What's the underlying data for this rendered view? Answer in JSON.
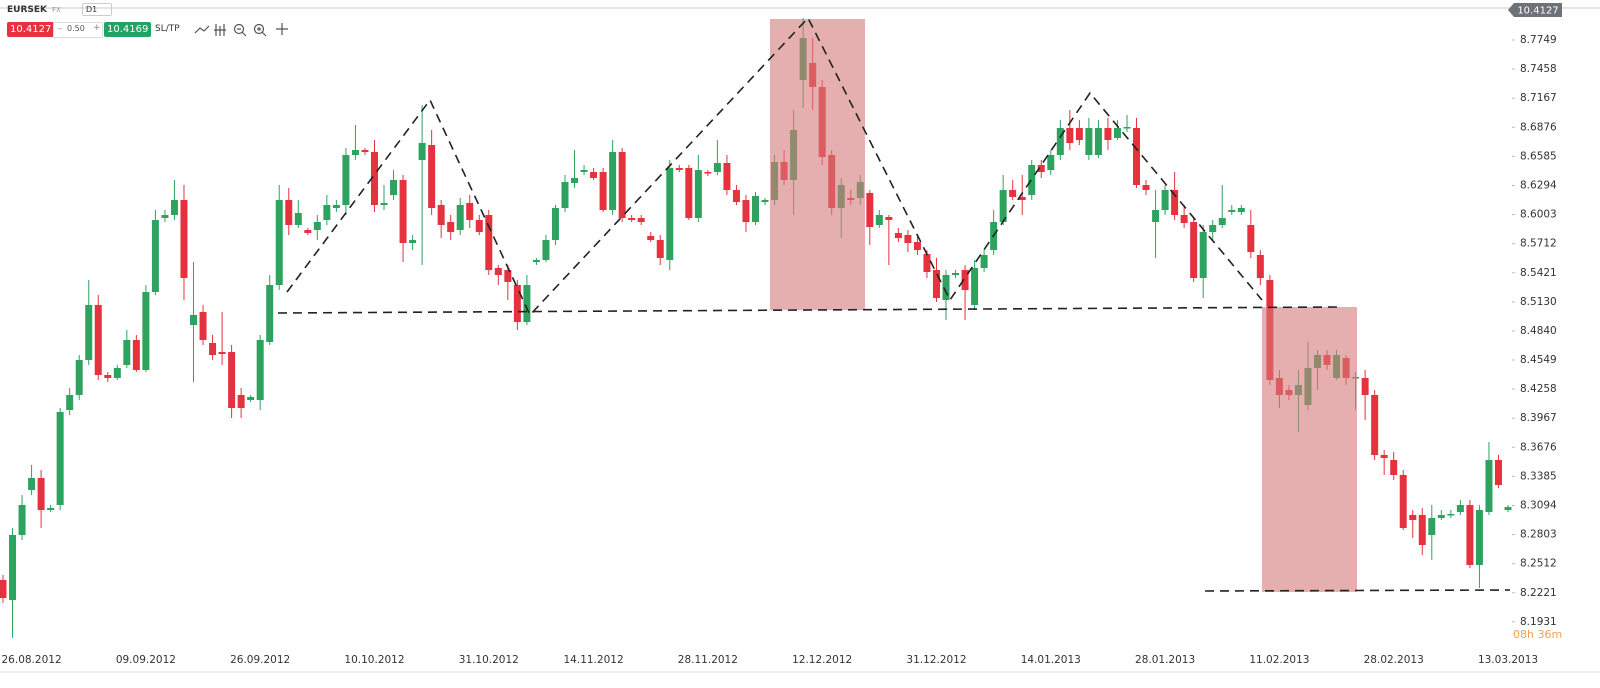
{
  "ui": {
    "symbol": "EURSEK",
    "market": "FX",
    "timeframe": "D1",
    "sell_price": "10.4127",
    "spread": "0.50",
    "buy_price": "10.4169",
    "sltp": "SL/TP",
    "price_flag": "10.4127",
    "countdown": "08h 36m"
  },
  "chart_data": {
    "type": "candlestick",
    "up_color": "#2ea35f",
    "down_color": "#e6323e",
    "grid": false,
    "ylim": [
      8.1669,
      8.8049
    ],
    "yticks": [
      8.7749,
      8.7458,
      8.7167,
      8.6876,
      8.6585,
      8.6294,
      8.6003,
      8.5712,
      8.5421,
      {
        "value": 8.513,
        "label": "8.5130"
      },
      {
        "value": 8.484,
        "label": "8.4840"
      },
      8.4549,
      8.4258,
      8.3967,
      8.3676,
      8.3385,
      8.3094,
      8.2803,
      8.2512,
      8.2221,
      8.1931
    ],
    "categories": [
      null,
      null,
      null,
      "26.08.2012",
      null,
      null,
      null,
      null,
      null,
      null,
      null,
      null,
      null,
      null,
      null,
      "09.09.2012",
      null,
      null,
      null,
      null,
      null,
      null,
      null,
      null,
      null,
      null,
      null,
      "26.09.2012",
      null,
      null,
      null,
      null,
      null,
      null,
      null,
      null,
      null,
      null,
      null,
      "10.10.2012",
      null,
      null,
      null,
      null,
      null,
      null,
      null,
      null,
      null,
      null,
      null,
      "31.10.2012",
      null,
      null,
      null,
      null,
      null,
      null,
      null,
      null,
      null,
      null,
      "14.11.2012",
      null,
      null,
      null,
      null,
      null,
      null,
      null,
      null,
      null,
      null,
      null,
      "28.11.2012",
      null,
      null,
      null,
      null,
      null,
      null,
      null,
      null,
      null,
      null,
      null,
      "12.12.2012",
      null,
      null,
      null,
      null,
      null,
      null,
      null,
      null,
      null,
      null,
      null,
      "31.12.2012",
      null,
      null,
      null,
      null,
      null,
      null,
      null,
      null,
      null,
      null,
      null,
      "14.01.2013",
      null,
      null,
      null,
      null,
      null,
      null,
      null,
      null,
      null,
      null,
      null,
      "28.01.2013",
      null,
      null,
      null,
      null,
      null,
      null,
      null,
      null,
      null,
      null,
      null,
      "11.02.2013",
      null,
      null,
      null,
      null,
      null,
      null,
      null,
      null,
      null,
      null,
      null,
      "28.02.2013",
      null,
      null,
      null,
      null,
      null,
      null,
      null,
      null,
      null,
      null,
      null,
      "13.03.2013"
    ],
    "ohlc": [
      [
        8.2349,
        8.2399,
        8.2119,
        8.2169
      ],
      [
        8.2149,
        8.2869,
        8.1769,
        8.2799
      ],
      [
        8.2799,
        8.3199,
        8.2749,
        8.3099
      ],
      [
        8.3249,
        8.3499,
        8.3199,
        8.3369
      ],
      [
        8.3369,
        8.3449,
        8.2869,
        8.3049
      ],
      [
        8.3049,
        8.3099,
        8.3029,
        8.3069
      ],
      [
        8.3099,
        8.4069,
        8.3049,
        8.4029
      ],
      [
        8.4049,
        8.4269,
        8.3999,
        8.4199
      ],
      [
        8.4199,
        8.4599,
        8.4149,
        8.4549
      ],
      [
        8.4549,
        8.5349,
        8.4499,
        8.5099
      ],
      [
        8.5099,
        8.5199,
        8.4349,
        8.4399
      ],
      [
        8.4399,
        8.4429,
        8.4329,
        8.4369
      ],
      [
        8.4369,
        8.4499,
        8.4349,
        8.4469
      ],
      [
        8.4499,
        8.4849,
        8.4469,
        8.4749
      ],
      [
        8.4749,
        8.4799,
        8.4429,
        8.4449
      ],
      [
        8.4449,
        8.5299,
        8.4429,
        8.5229
      ],
      [
        8.5229,
        8.6049,
        8.5199,
        8.5949
      ],
      [
        8.5969,
        8.6049,
        8.5929,
        8.5999
      ],
      [
        8.5999,
        8.6349,
        8.5949,
        8.6149
      ],
      [
        8.6149,
        8.6299,
        8.5149,
        8.5369
      ],
      [
        8.4899,
        8.5529,
        8.4329,
        8.4999
      ],
      [
        8.5029,
        8.5099,
        8.4699,
        8.4749
      ],
      [
        8.4719,
        8.4799,
        8.4549,
        8.4599
      ],
      [
        8.4629,
        8.5029,
        8.4499,
        8.4609
      ],
      [
        8.4629,
        8.4699,
        8.3969,
        8.4069
      ],
      [
        8.4199,
        8.4269,
        8.3969,
        8.4069
      ],
      [
        8.4149,
        8.4199,
        8.4129,
        8.4179
      ],
      [
        8.4149,
        8.4799,
        8.4049,
        8.4749
      ],
      [
        8.4729,
        8.5399,
        8.4699,
        8.5299
      ],
      [
        8.5299,
        8.6299,
        8.5249,
        8.6149
      ],
      [
        8.6149,
        8.6269,
        8.5799,
        8.5899
      ],
      [
        8.5899,
        8.6149,
        8.5869,
        8.6019
      ],
      [
        8.5849,
        8.5869,
        8.5799,
        8.5819
      ],
      [
        8.5849,
        8.5999,
        8.5749,
        8.5929
      ],
      [
        8.5949,
        8.6199,
        8.5899,
        8.6099
      ],
      [
        8.6069,
        8.6149,
        8.6029,
        8.6099
      ],
      [
        8.6099,
        8.6669,
        8.5999,
        8.6599
      ],
      [
        8.6599,
        8.6899,
        8.6549,
        8.6649
      ],
      [
        8.6649,
        8.6669,
        8.6599,
        8.6629
      ],
      [
        8.6629,
        8.6749,
        8.6029,
        8.6099
      ],
      [
        8.6099,
        8.6299,
        8.6049,
        8.6119
      ],
      [
        8.6199,
        8.6449,
        8.6149,
        8.6349
      ],
      [
        8.6349,
        8.6399,
        8.5529,
        8.5719
      ],
      [
        8.5719,
        8.5799,
        8.5649,
        8.5749
      ],
      [
        8.6549,
        8.7099,
        8.5499,
        8.6719
      ],
      [
        8.6699,
        8.6849,
        8.5999,
        8.6069
      ],
      [
        8.6099,
        8.6149,
        8.5769,
        8.5899
      ],
      [
        8.5929,
        8.5999,
        8.5749,
        8.5829
      ],
      [
        8.5849,
        8.6169,
        8.5799,
        8.6099
      ],
      [
        8.6119,
        8.6199,
        8.5869,
        8.5949
      ],
      [
        8.5949,
        8.5999,
        8.5799,
        8.5829
      ],
      [
        8.5999,
        8.6049,
        8.5399,
        8.5449
      ],
      [
        8.5469,
        8.5499,
        8.5299,
        8.5399
      ],
      [
        8.5449,
        8.5499,
        8.5149,
        8.5329
      ],
      [
        8.5299,
        8.5349,
        8.4849,
        8.4929
      ],
      [
        8.4929,
        8.5399,
        8.4899,
        8.5299
      ],
      [
        8.5529,
        8.5569,
        8.5499,
        8.5549
      ],
      [
        8.5549,
        8.5799,
        8.5529,
        8.5749
      ],
      [
        8.5749,
        8.6099,
        8.5699,
        8.6069
      ],
      [
        8.6069,
        8.6399,
        8.6029,
        8.6329
      ],
      [
        8.6319,
        8.6649,
        8.6269,
        8.6369
      ],
      [
        8.6429,
        8.6499,
        8.6399,
        8.6449
      ],
      [
        8.6429,
        8.6469,
        8.6349,
        8.6369
      ],
      [
        8.6429,
        8.6469,
        8.6029,
        8.6049
      ],
      [
        8.6049,
        8.6749,
        8.5999,
        8.6629
      ],
      [
        8.6629,
        8.6669,
        8.5929,
        8.5969
      ],
      [
        8.5969,
        8.5999,
        8.5929,
        8.5949
      ],
      [
        8.5969,
        8.5999,
        8.5899,
        8.5929
      ],
      [
        8.5789,
        8.5829,
        8.5729,
        8.5749
      ],
      [
        8.5749,
        8.5799,
        8.5499,
        8.5569
      ],
      [
        8.5549,
        8.6549,
        8.5449,
        8.6469
      ],
      [
        8.6469,
        8.6499,
        8.6429,
        8.6449
      ],
      [
        8.6469,
        8.6499,
        8.5949,
        8.5969
      ],
      [
        8.5969,
        8.6599,
        8.5929,
        8.6449
      ],
      [
        8.6429,
        8.6449,
        8.6389,
        8.6419
      ],
      [
        8.6429,
        8.6749,
        8.6399,
        8.6519
      ],
      [
        8.6519,
        8.6599,
        8.6199,
        8.6249
      ],
      [
        8.6249,
        8.6299,
        8.6099,
        8.6129
      ],
      [
        8.6149,
        8.6199,
        8.5829,
        8.5929
      ],
      [
        8.5929,
        8.6229,
        8.5899,
        8.6189
      ],
      [
        8.6129,
        8.6169,
        8.6099,
        8.6149
      ],
      [
        8.6149,
        8.6599,
        8.6099,
        8.6529
      ],
      [
        8.6529,
        8.6649,
        8.6299,
        8.6349
      ],
      [
        8.6349,
        8.7049,
        8.5999,
        8.6849
      ],
      [
        8.7349,
        8.7969,
        8.7069,
        8.7769
      ],
      [
        8.7519,
        8.7769,
        8.7049,
        8.7279
      ],
      [
        8.7279,
        8.7349,
        8.6499,
        8.6579
      ],
      [
        8.6599,
        8.6649,
        8.5999,
        8.6069
      ],
      [
        8.6069,
        8.6369,
        8.5769,
        8.6299
      ],
      [
        8.6169,
        8.6249,
        8.6099,
        8.6149
      ],
      [
        8.6169,
        8.6399,
        8.6099,
        8.6329
      ],
      [
        8.6219,
        8.6249,
        8.5699,
        8.5879
      ],
      [
        8.5899,
        8.6049,
        8.5869,
        8.5999
      ],
      [
        8.5979,
        8.5999,
        8.5499,
        8.5949
      ],
      [
        8.5819,
        8.5869,
        8.5729,
        8.5769
      ],
      [
        8.5799,
        8.5849,
        8.5629,
        8.5719
      ],
      [
        8.5729,
        8.5799,
        8.5599,
        8.5649
      ],
      [
        8.5609,
        8.5649,
        8.5369,
        8.5429
      ],
      [
        8.5449,
        8.5569,
        8.5129,
        8.5169
      ],
      [
        8.5149,
        8.5449,
        8.4949,
        8.5399
      ],
      [
        8.5399,
        8.5449,
        8.5369,
        8.5419
      ],
      [
        8.5449,
        8.5499,
        8.4949,
        8.5249
      ],
      [
        8.5099,
        8.5549,
        8.5049,
        8.5469
      ],
      [
        8.5469,
        8.5649,
        8.5429,
        8.5599
      ],
      [
        8.5649,
        8.6049,
        8.5599,
        8.5929
      ],
      [
        8.5929,
        8.6399,
        8.5899,
        8.6249
      ],
      [
        8.6249,
        8.6349,
        8.6149,
        8.6179
      ],
      [
        8.6179,
        8.6399,
        8.5999,
        8.6149
      ],
      [
        8.6199,
        8.6549,
        8.6149,
        8.6499
      ],
      [
        8.6499,
        8.6549,
        8.6369,
        8.6429
      ],
      [
        8.6449,
        8.6649,
        8.6399,
        8.6599
      ],
      [
        8.6599,
        8.6949,
        8.6549,
        8.6869
      ],
      [
        8.6869,
        8.7049,
        8.6649,
        8.6719
      ],
      [
        8.6869,
        8.6949,
        8.6699,
        8.6749
      ],
      [
        8.6599,
        8.6969,
        8.6549,
        8.6869
      ],
      [
        8.6599,
        8.6949,
        8.6569,
        8.6869
      ],
      [
        8.6869,
        8.6969,
        8.6649,
        8.6749
      ],
      [
        8.6769,
        8.6949,
        8.6749,
        8.6869
      ],
      [
        8.6869,
        8.6999,
        8.6829,
        8.6879
      ],
      [
        8.6869,
        8.6969,
        8.6269,
        8.6299
      ],
      [
        8.6299,
        8.6349,
        8.6199,
        8.6249
      ],
      [
        8.5929,
        8.6249,
        8.5569,
        8.6049
      ],
      [
        8.6049,
        8.6299,
        8.5999,
        8.6249
      ],
      [
        8.6249,
        8.6429,
        8.5949,
        8.5999
      ],
      [
        8.5999,
        8.6099,
        8.5869,
        8.5919
      ],
      [
        8.5929,
        8.5969,
        8.5329,
        8.5369
      ],
      [
        8.5369,
        8.5899,
        8.5169,
        8.5829
      ],
      [
        8.5829,
        8.5949,
        8.5749,
        8.5899
      ],
      [
        8.5899,
        8.6299,
        8.5869,
        8.5969
      ],
      [
        8.6029,
        8.6099,
        8.5999,
        8.6049
      ],
      [
        8.6029,
        8.6099,
        8.5999,
        8.6069
      ],
      [
        8.5899,
        8.6049,
        8.5569,
        8.5629
      ],
      [
        8.5599,
        8.5649,
        8.5299,
        8.5369
      ],
      [
        8.5349,
        8.5399,
        8.4299,
        8.4349
      ],
      [
        8.4369,
        8.4449,
        8.4069,
        8.4199
      ],
      [
        8.4249,
        8.4299,
        8.4149,
        8.4199
      ],
      [
        8.4199,
        8.4449,
        8.3829,
        8.4299
      ],
      [
        8.4099,
        8.4729,
        8.4049,
        8.4469
      ],
      [
        8.4469,
        8.4649,
        8.4249,
        8.4599
      ],
      [
        8.4599,
        8.4649,
        8.4449,
        8.4499
      ],
      [
        8.4369,
        8.4649,
        8.4349,
        8.4599
      ],
      [
        8.4569,
        8.4599,
        8.4299,
        8.4369
      ],
      [
        8.4369,
        8.4429,
        8.4049,
        8.4379
      ],
      [
        8.4369,
        8.4449,
        8.3949,
        8.4199
      ],
      [
        8.4199,
        8.4249,
        8.3549,
        8.3599
      ],
      [
        8.3599,
        8.3649,
        8.3399,
        8.3569
      ],
      [
        8.3549,
        8.3629,
        8.3349,
        8.3399
      ],
      [
        8.3399,
        8.3449,
        8.2849,
        8.2869
      ],
      [
        8.2999,
        8.3049,
        8.2769,
        8.2949
      ],
      [
        8.2999,
        8.3069,
        8.2599,
        8.2699
      ],
      [
        8.2799,
        8.3099,
        8.2549,
        8.2969
      ],
      [
        8.2969,
        8.3049,
        8.2949,
        8.2999
      ],
      [
        8.2999,
        8.3049,
        8.2969,
        8.3009
      ],
      [
        8.3029,
        8.3149,
        8.2999,
        8.3099
      ],
      [
        8.3099,
        8.3149,
        8.2469,
        8.2499
      ],
      [
        8.2499,
        8.3099,
        8.2269,
        8.3049
      ],
      [
        8.3029,
        8.3729,
        8.2999,
        8.3549
      ],
      [
        8.3549,
        8.3599,
        8.3269,
        8.3299
      ],
      [
        8.3049,
        8.3099,
        8.3029,
        8.3079
      ]
    ]
  }
}
